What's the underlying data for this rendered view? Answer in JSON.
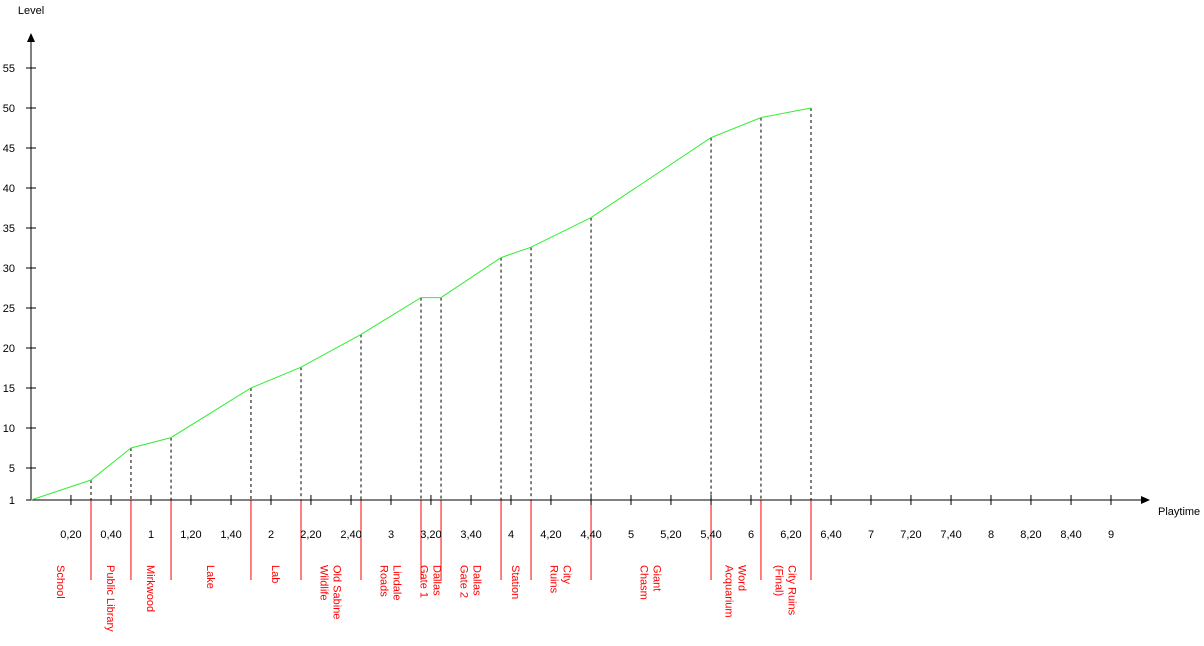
{
  "chart_data": {
    "type": "line",
    "xlabel": "Playtime",
    "ylabel": "Level",
    "xlim": [
      0,
      9.5
    ],
    "ylim": [
      1,
      59
    ],
    "x_ticks": [
      {
        "value": 0.333,
        "label": "0,20"
      },
      {
        "value": 0.667,
        "label": "0,40"
      },
      {
        "value": 1.0,
        "label": "1"
      },
      {
        "value": 1.333,
        "label": "1,20"
      },
      {
        "value": 1.667,
        "label": "1,40"
      },
      {
        "value": 2.0,
        "label": "2"
      },
      {
        "value": 2.333,
        "label": "2,20"
      },
      {
        "value": 2.667,
        "label": "2,40"
      },
      {
        "value": 3.0,
        "label": "3"
      },
      {
        "value": 3.333,
        "label": "3,20"
      },
      {
        "value": 3.667,
        "label": "3,40"
      },
      {
        "value": 4.0,
        "label": "4"
      },
      {
        "value": 4.333,
        "label": "4,20"
      },
      {
        "value": 4.667,
        "label": "4,40"
      },
      {
        "value": 5.0,
        "label": "5"
      },
      {
        "value": 5.333,
        "label": "5,20"
      },
      {
        "value": 5.667,
        "label": "5,40"
      },
      {
        "value": 6.0,
        "label": "6"
      },
      {
        "value": 6.333,
        "label": "6,20"
      },
      {
        "value": 6.667,
        "label": "6,40"
      },
      {
        "value": 7.0,
        "label": "7"
      },
      {
        "value": 7.333,
        "label": "7,20"
      },
      {
        "value": 7.667,
        "label": "7,40"
      },
      {
        "value": 8.0,
        "label": "8"
      },
      {
        "value": 8.333,
        "label": "8,20"
      },
      {
        "value": 8.667,
        "label": "8,40"
      },
      {
        "value": 9.0,
        "label": "9"
      }
    ],
    "y_ticks": [
      {
        "value": 1,
        "label": "1"
      },
      {
        "value": 5,
        "label": "5"
      },
      {
        "value": 10,
        "label": "10"
      },
      {
        "value": 15,
        "label": "15"
      },
      {
        "value": 20,
        "label": "20"
      },
      {
        "value": 25,
        "label": "25"
      },
      {
        "value": 30,
        "label": "30"
      },
      {
        "value": 35,
        "label": "35"
      },
      {
        "value": 40,
        "label": "40"
      },
      {
        "value": 45,
        "label": "45"
      },
      {
        "value": 50,
        "label": "50"
      },
      {
        "value": 55,
        "label": "55"
      }
    ],
    "series": [
      {
        "color": "#33ee33",
        "points": [
          {
            "x": 0.0,
            "y": 1
          },
          {
            "x": 0.5,
            "y": 3.5
          },
          {
            "x": 0.833,
            "y": 7.5
          },
          {
            "x": 1.167,
            "y": 8.8
          },
          {
            "x": 1.833,
            "y": 15
          },
          {
            "x": 2.25,
            "y": 17.6
          },
          {
            "x": 2.75,
            "y": 21.7
          },
          {
            "x": 3.25,
            "y": 26.3
          },
          {
            "x": 3.417,
            "y": 26.3
          },
          {
            "x": 3.917,
            "y": 31.3
          },
          {
            "x": 4.167,
            "y": 32.6
          },
          {
            "x": 4.667,
            "y": 36.3
          },
          {
            "x": 5.667,
            "y": 46.3
          },
          {
            "x": 6.083,
            "y": 48.8
          },
          {
            "x": 6.5,
            "y": 50
          }
        ]
      }
    ],
    "level_markers": [
      {
        "x": 0.5,
        "y": 3.5
      },
      {
        "x": 0.833,
        "y": 7.5
      },
      {
        "x": 1.167,
        "y": 8.8
      },
      {
        "x": 1.833,
        "y": 15
      },
      {
        "x": 2.25,
        "y": 17.6
      },
      {
        "x": 2.75,
        "y": 21.7
      },
      {
        "x": 3.25,
        "y": 26.3
      },
      {
        "x": 3.417,
        "y": 26.3
      },
      {
        "x": 3.917,
        "y": 31.3
      },
      {
        "x": 4.167,
        "y": 32.6
      },
      {
        "x": 4.667,
        "y": 36.3
      },
      {
        "x": 5.667,
        "y": 46.3
      },
      {
        "x": 6.083,
        "y": 48.8
      },
      {
        "x": 6.5,
        "y": 50
      }
    ],
    "region_boundaries": [
      0.5,
      0.833,
      1.167,
      1.833,
      2.25,
      2.75,
      3.25,
      3.417,
      3.917,
      4.167,
      4.667,
      5.667,
      6.083,
      6.5
    ],
    "region_color": "#ff0000",
    "regions": [
      {
        "lines": [
          "School"
        ],
        "x": 0.25
      },
      {
        "lines": [
          "Public Library"
        ],
        "x": 0.667
      },
      {
        "lines": [
          "Mirkwood"
        ],
        "x": 1.0
      },
      {
        "lines": [
          "Lake"
        ],
        "x": 1.5
      },
      {
        "lines": [
          "Lab"
        ],
        "x": 2.042
      },
      {
        "lines": [
          "Old Sabine",
          "Wildlife"
        ],
        "x": 2.5
      },
      {
        "lines": [
          "Lindale",
          "Roads"
        ],
        "x": 3.0
      },
      {
        "lines": [
          "Dallas",
          "Gate 1"
        ],
        "x": 3.333
      },
      {
        "lines": [
          "Dallas",
          "Gate 2"
        ],
        "x": 3.667
      },
      {
        "lines": [
          "Station"
        ],
        "x": 4.042
      },
      {
        "lines": [
          "City",
          "Ruins"
        ],
        "x": 4.417
      },
      {
        "lines": [
          "Giant",
          "Chasm"
        ],
        "x": 5.167
      },
      {
        "lines": [
          "Word",
          "Acquarium"
        ],
        "x": 5.875
      },
      {
        "lines": [
          "City Ruins",
          "(Final)"
        ],
        "x": 6.292
      }
    ]
  }
}
